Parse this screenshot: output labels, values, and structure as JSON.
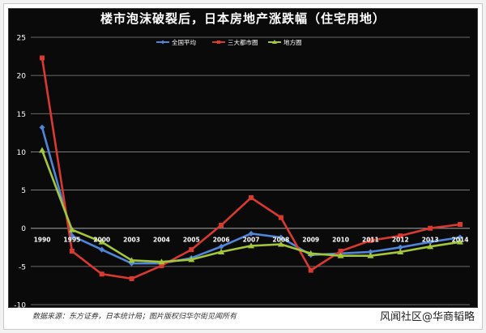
{
  "colors": {
    "panel": "#0a0a0a",
    "grid": "#8a8a8a",
    "tick_text": "#ffffff",
    "series_colors": [
      "#4f86d9",
      "#d9392f",
      "#a4c63a"
    ]
  },
  "chart_data": {
    "type": "line",
    "title": "楼市泡沫破裂后，日本房地产涨跌幅（住宅用地）",
    "xlabel": "",
    "ylabel": "",
    "x": [
      "1990",
      "1995",
      "2000",
      "2003",
      "2004",
      "2005",
      "2006",
      "2007",
      "2008",
      "2009",
      "2010",
      "2011",
      "2012",
      "2013",
      "2014"
    ],
    "ylim": [
      -10,
      25
    ],
    "yticks": [
      -10,
      -5,
      0,
      5,
      10,
      15,
      20,
      25
    ],
    "grid": true,
    "legend_position": "top-center",
    "series": [
      {
        "name": "全国平均",
        "values": [
          13.2,
          -1.0,
          -2.8,
          -4.6,
          -4.6,
          -3.9,
          -2.4,
          -0.7,
          -1.2,
          -3.5,
          -3.3,
          -3.1,
          -2.5,
          -1.8,
          -1.2
        ]
      },
      {
        "name": "三大都市圈",
        "values": [
          22.3,
          -3.0,
          -6.0,
          -6.6,
          -4.9,
          -2.8,
          0.4,
          4.0,
          1.4,
          -5.5,
          -3.0,
          -1.6,
          -1.0,
          0.0,
          0.5
        ]
      },
      {
        "name": "地方圈",
        "values": [
          10.2,
          -0.2,
          -1.8,
          -4.2,
          -4.4,
          -4.1,
          -3.1,
          -2.3,
          -2.1,
          -3.3,
          -3.6,
          -3.6,
          -3.1,
          -2.4,
          -1.8
        ]
      }
    ]
  },
  "footer": {
    "source": "数据来源：东方证券，日本统计局；图片版权归华尔街见闻所有",
    "watermark": "风闻社区@华商韬略"
  }
}
